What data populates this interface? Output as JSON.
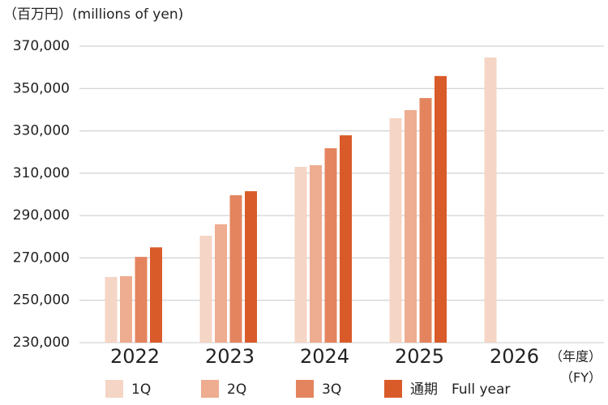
{
  "chart_data": {
    "type": "bar",
    "y_axis_label": "（百万円）(millions of yen)",
    "x_axis_label": [
      "（年度）",
      "（FY）"
    ],
    "categories": [
      "2022",
      "2023",
      "2024",
      "2025",
      "2026"
    ],
    "series": [
      {
        "name": "1Q",
        "color": "#f5d5c5",
        "values": [
          261000,
          280500,
          313000,
          336000,
          364700
        ]
      },
      {
        "name": "2Q",
        "color": "#eeac90",
        "values": [
          261400,
          285900,
          313800,
          339800,
          null
        ]
      },
      {
        "name": "3Q",
        "color": "#e4845e",
        "values": [
          270500,
          299600,
          321800,
          345500,
          null
        ]
      },
      {
        "name": "通期　Full year",
        "color": "#d95b2a",
        "values": [
          275000,
          301500,
          327900,
          355900,
          null
        ]
      }
    ],
    "ylim": [
      230000,
      370000
    ],
    "yticks": [
      {
        "value": 230000,
        "label": "230,000"
      },
      {
        "value": 250000,
        "label": "250,000"
      },
      {
        "value": 270000,
        "label": "270,000"
      },
      {
        "value": 290000,
        "label": "290,000"
      },
      {
        "value": 310000,
        "label": "310,000"
      },
      {
        "value": 330000,
        "label": "330,000"
      },
      {
        "value": 350000,
        "label": "350,000"
      },
      {
        "value": 370000,
        "label": "370,000"
      }
    ],
    "grid": true
  }
}
